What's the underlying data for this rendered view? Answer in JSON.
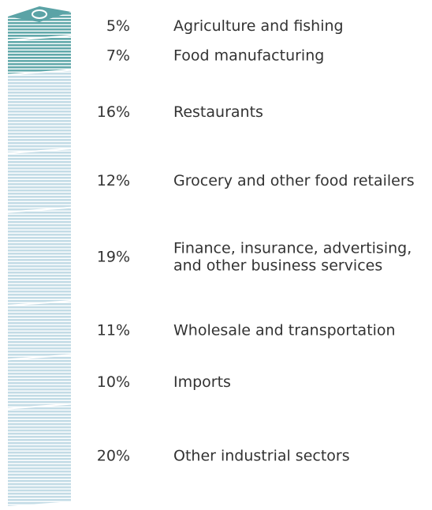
{
  "chart_data": {
    "type": "stack",
    "categories": [
      "Agriculture and fishing",
      "Food manufacturing",
      "Restaurants",
      "Grocery and other food retailers",
      [
        "Finance, insurance, advertising,",
        "and other business services"
      ],
      "Wholesale and transportation",
      "Imports",
      "Other industrial sectors"
    ],
    "values": [
      5,
      7,
      16,
      12,
      19,
      11,
      10,
      20
    ],
    "value_labels": [
      "5%",
      "7%",
      "16%",
      "12%",
      "19%",
      "11%",
      "10%",
      "20%"
    ],
    "colors": [
      "#62a9ab",
      "#62a9ab",
      "#c3dce6",
      "#c3dce6",
      "#c3dce6",
      "#c3dce6",
      "#c3dce6",
      "#c3dce6"
    ]
  }
}
